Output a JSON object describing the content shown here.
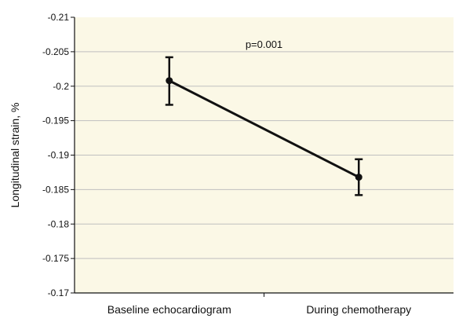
{
  "chart_data": {
    "type": "line",
    "title": "",
    "xlabel": "",
    "ylabel": "Longitudinal strain, %",
    "categories": [
      "Baseline echocardiogram",
      "During chemotherapy"
    ],
    "series": [
      {
        "values": [
          -0.2008,
          -0.1868
        ],
        "error_low": [
          -0.1973,
          -0.1842
        ],
        "error_high": [
          -0.2042,
          -0.1894
        ],
        "color": "#111111"
      }
    ],
    "ylim": [
      -0.21,
      -0.17
    ],
    "y_ticks": [
      -0.21,
      -0.205,
      -0.2,
      -0.195,
      -0.19,
      -0.185,
      -0.18,
      -0.175,
      -0.17
    ],
    "y_tick_labels": [
      "-0.21",
      "-0.205",
      "-0.2",
      "-0.195",
      "-0.19",
      "-0.185",
      "-0.18",
      "-0.175",
      "-0.17"
    ],
    "grid": true,
    "background_color": "#fbf8e6",
    "grid_color": "#bfbfbf",
    "annotation": {
      "text": "p=0.001",
      "x_category": 0.5,
      "y": -0.206
    }
  }
}
